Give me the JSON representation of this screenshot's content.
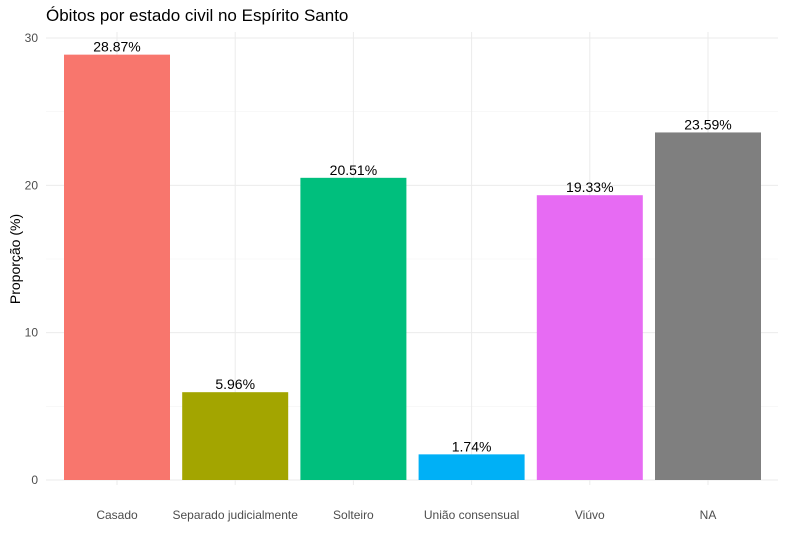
{
  "chart_data": {
    "type": "bar",
    "title": "Óbitos por  estado civil no Espírito Santo",
    "xlabel": "",
    "ylabel": "Proporção (%)",
    "ylim": [
      0,
      30
    ],
    "yticks": [
      0,
      10,
      20,
      30
    ],
    "grid": true,
    "legend": "none",
    "categories": [
      "Casado",
      "Separado judicialmente",
      "Solteiro",
      "União consensual",
      "Viúvo",
      "NA"
    ],
    "values": [
      28.87,
      5.96,
      20.51,
      1.74,
      19.33,
      23.59
    ],
    "data_labels": [
      "28.87%",
      "5.96%",
      "20.51%",
      "1.74%",
      "19.33%",
      "23.59%"
    ],
    "colors": [
      "#F8766D",
      "#A3A500",
      "#00BF7D",
      "#00B0F6",
      "#E76BF3",
      "#7F7F7F"
    ]
  }
}
